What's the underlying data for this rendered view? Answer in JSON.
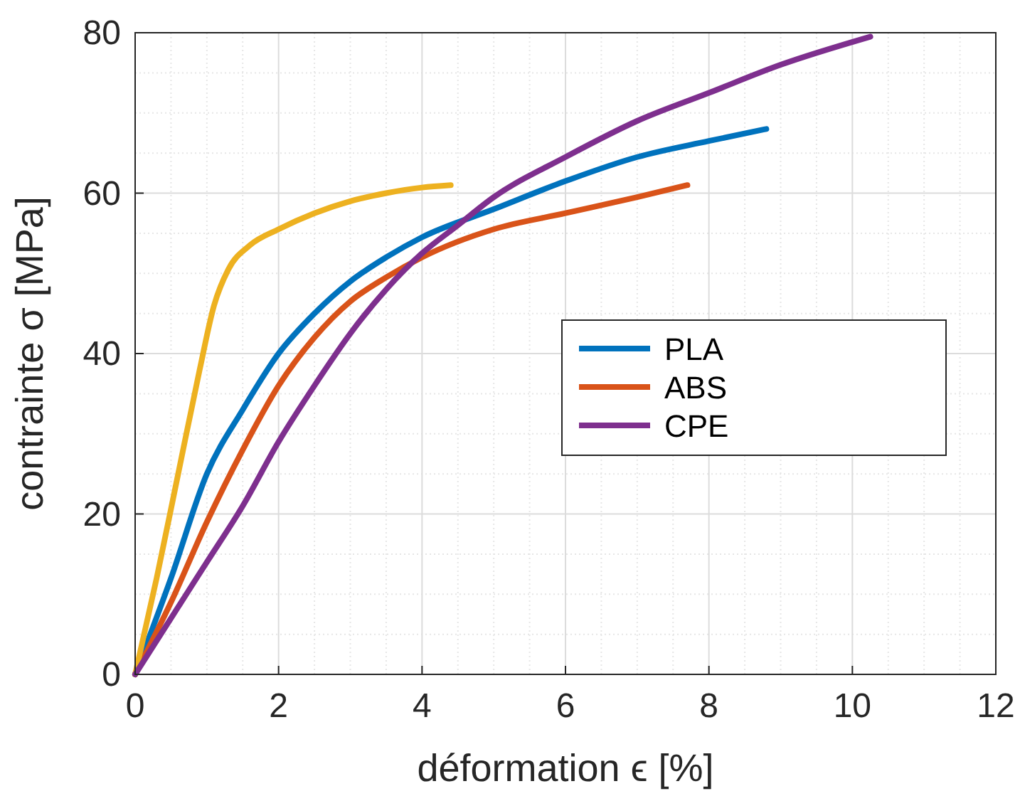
{
  "chart_data": {
    "type": "line",
    "xlabel": "déformation ϵ [%]",
    "ylabel": "contrainte σ [MPa]",
    "xlim": [
      0,
      12
    ],
    "ylim": [
      0,
      80
    ],
    "xticks": [
      0,
      2,
      4,
      6,
      8,
      10,
      12
    ],
    "yticks": [
      0,
      20,
      40,
      60,
      80
    ],
    "grid": true,
    "legend": "right",
    "line_style": "solid",
    "marker": "none",
    "series": [
      {
        "name": "PLA",
        "color": "#0072bd",
        "x": [
          0,
          0.5,
          1,
          1.5,
          2,
          2.5,
          3,
          3.5,
          4,
          5,
          6,
          7,
          8,
          8.8
        ],
        "values": [
          0,
          12,
          25,
          33,
          40,
          45,
          49,
          52,
          54.5,
          58,
          61.5,
          64.5,
          66.5,
          68
        ]
      },
      {
        "name": "ABS",
        "color": "#d95319",
        "x": [
          0,
          0.5,
          1,
          1.5,
          2,
          2.5,
          3,
          3.5,
          4,
          5,
          6,
          7,
          7.7
        ],
        "values": [
          0,
          9,
          19,
          28,
          36,
          42,
          46.5,
          49.5,
          52,
          55.5,
          57.5,
          59.5,
          61
        ]
      },
      {
        "color": "#edb120",
        "x": [
          0,
          0.3,
          0.6,
          0.9,
          1.1,
          1.3,
          1.6,
          2,
          2.5,
          3,
          3.5,
          4,
          4.4
        ],
        "values": [
          0,
          12,
          25,
          38,
          46,
          50.5,
          53.5,
          55.5,
          57.5,
          59,
          60,
          60.7,
          61
        ]
      },
      {
        "name": "CPE",
        "color": "#7e2f8e",
        "x": [
          0,
          0.5,
          1,
          1.5,
          2,
          2.5,
          3,
          3.5,
          4,
          4.5,
          5,
          6,
          7,
          8,
          9,
          10.25
        ],
        "values": [
          0,
          7,
          14,
          21,
          29,
          36,
          42.5,
          48,
          52.5,
          56,
          59.5,
          64.5,
          69,
          72.5,
          76,
          79.5
        ]
      }
    ]
  }
}
